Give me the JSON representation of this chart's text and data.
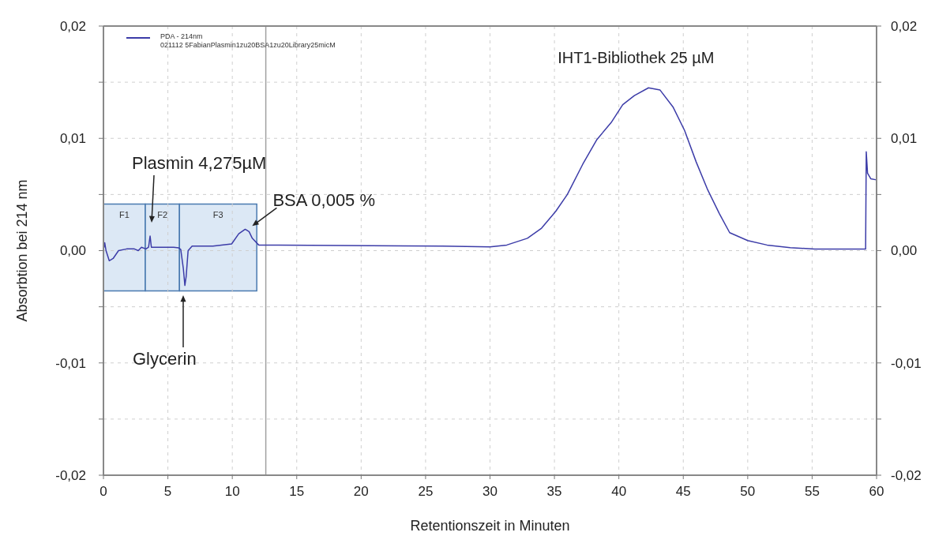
{
  "chart_data": {
    "type": "line",
    "xlabel": "Retentionszeit in Minuten",
    "ylabel": "Absorbtion bei 214 nm",
    "x": [
      0.05,
      0.1,
      0.2,
      0.45,
      0.75,
      1.17,
      1.8,
      2.4,
      2.7,
      2.95,
      3.3,
      3.5,
      3.62,
      3.72,
      4.45,
      5.45,
      5.85,
      6.0,
      6.2,
      6.32,
      6.42,
      6.57,
      6.88,
      8.5,
      9.95,
      10.5,
      11.0,
      11.3,
      11.55,
      12.05,
      13.6,
      26.3,
      30.0,
      31.3,
      32.9,
      34.0,
      35.1,
      36.0,
      37.2,
      38.3,
      39.4,
      40.3,
      41.2,
      42.3,
      43.2,
      44.2,
      45.1,
      46.0,
      46.9,
      47.8,
      48.6,
      50.0,
      51.5,
      53.3,
      55.2,
      59.15,
      59.2,
      59.3,
      59.55,
      60
    ],
    "series": [
      {
        "name": "PDA - 214nm\n021112 5FabianPlasmin1zu20BSA1zu20Library25micM",
        "color": "#3c3ca8",
        "values": [
          0.0003,
          0.0007,
          0,
          -0.0009,
          -0.0007,
          0,
          0.00015,
          0.00015,
          0,
          0.0003,
          0.00015,
          0.0003,
          0.0013,
          0.0003,
          0.0003,
          0.0003,
          0.00025,
          0.0001,
          -0.0016,
          -0.0031,
          -0.0023,
          0,
          0.0004,
          0.0004,
          0.0006,
          0.0015,
          0.0019,
          0.0017,
          0.0011,
          0.0005,
          0.0005,
          0.0004,
          0.00034,
          0.0005,
          0.0011,
          0.002,
          0.0035,
          0.005,
          0.0077,
          0.0099,
          0.0114,
          0.013,
          0.0138,
          0.0145,
          0.0143,
          0.0128,
          0.0107,
          0.0079,
          0.0054,
          0.0033,
          0.0016,
          0.0009,
          0.0005,
          0.00027,
          0.00014,
          0.00014,
          0.0088,
          0.0069,
          0.0064,
          0.0063
        ]
      }
    ],
    "xlim": [
      0,
      60
    ],
    "xticks": [
      0,
      5,
      10,
      15,
      20,
      25,
      30,
      35,
      40,
      45,
      50,
      55,
      60
    ],
    "ylim": [
      -0.02,
      0.02
    ],
    "yticks": [
      {
        "value": -0.02,
        "label": "-0,02"
      },
      {
        "value": -0.015,
        "label": null
      },
      {
        "value": -0.01,
        "label": "-0,01"
      },
      {
        "value": -0.005,
        "label": null
      },
      {
        "value": 0,
        "label": "0,00"
      },
      {
        "value": 0.005,
        "label": null
      },
      {
        "value": 0.01,
        "label": "0,01"
      },
      {
        "value": 0.015,
        "label": null
      },
      {
        "value": 0.02,
        "label": "0,02"
      }
    ],
    "y2lim": [
      -0.02,
      0.02
    ],
    "y2ticks": [
      {
        "value": -0.02,
        "label": "-0,02"
      },
      {
        "value": -0.015,
        "label": null
      },
      {
        "value": -0.01,
        "label": "-0,01"
      },
      {
        "value": -0.005,
        "label": null
      },
      {
        "value": 0,
        "label": "0,00"
      },
      {
        "value": 0.005,
        "label": null
      },
      {
        "value": 0.01,
        "label": "0,01"
      },
      {
        "value": 0.015,
        "label": null
      },
      {
        "value": 0.02,
        "label": "0,02"
      }
    ],
    "grid": true,
    "legend": "top left",
    "marker": "none",
    "line_style": "solid",
    "ref_lines": [
      {
        "axis": "x",
        "value": 12.6,
        "color": "#a0a0a0"
      }
    ],
    "bands": [
      {
        "axis": "x",
        "from": 0,
        "to": 3.25,
        "label": "F1",
        "color": "#dce8f5"
      },
      {
        "axis": "x",
        "from": 3.25,
        "to": 5.9,
        "label": "F2",
        "color": "#dce8f5"
      },
      {
        "axis": "x",
        "from": 5.9,
        "to": 11.9,
        "label": "F3",
        "color": "#dce8f5"
      }
    ],
    "annotations": [
      "Plasmin 4,275µM",
      {
        "text": "BSA 0,005 %",
        "x": 11.3,
        "y": 0.0017
      },
      "Glycerin",
      {
        "text": "IHT1-Bibliothek 25 µM",
        "x": 42.3,
        "y": 0.0145
      }
    ]
  }
}
